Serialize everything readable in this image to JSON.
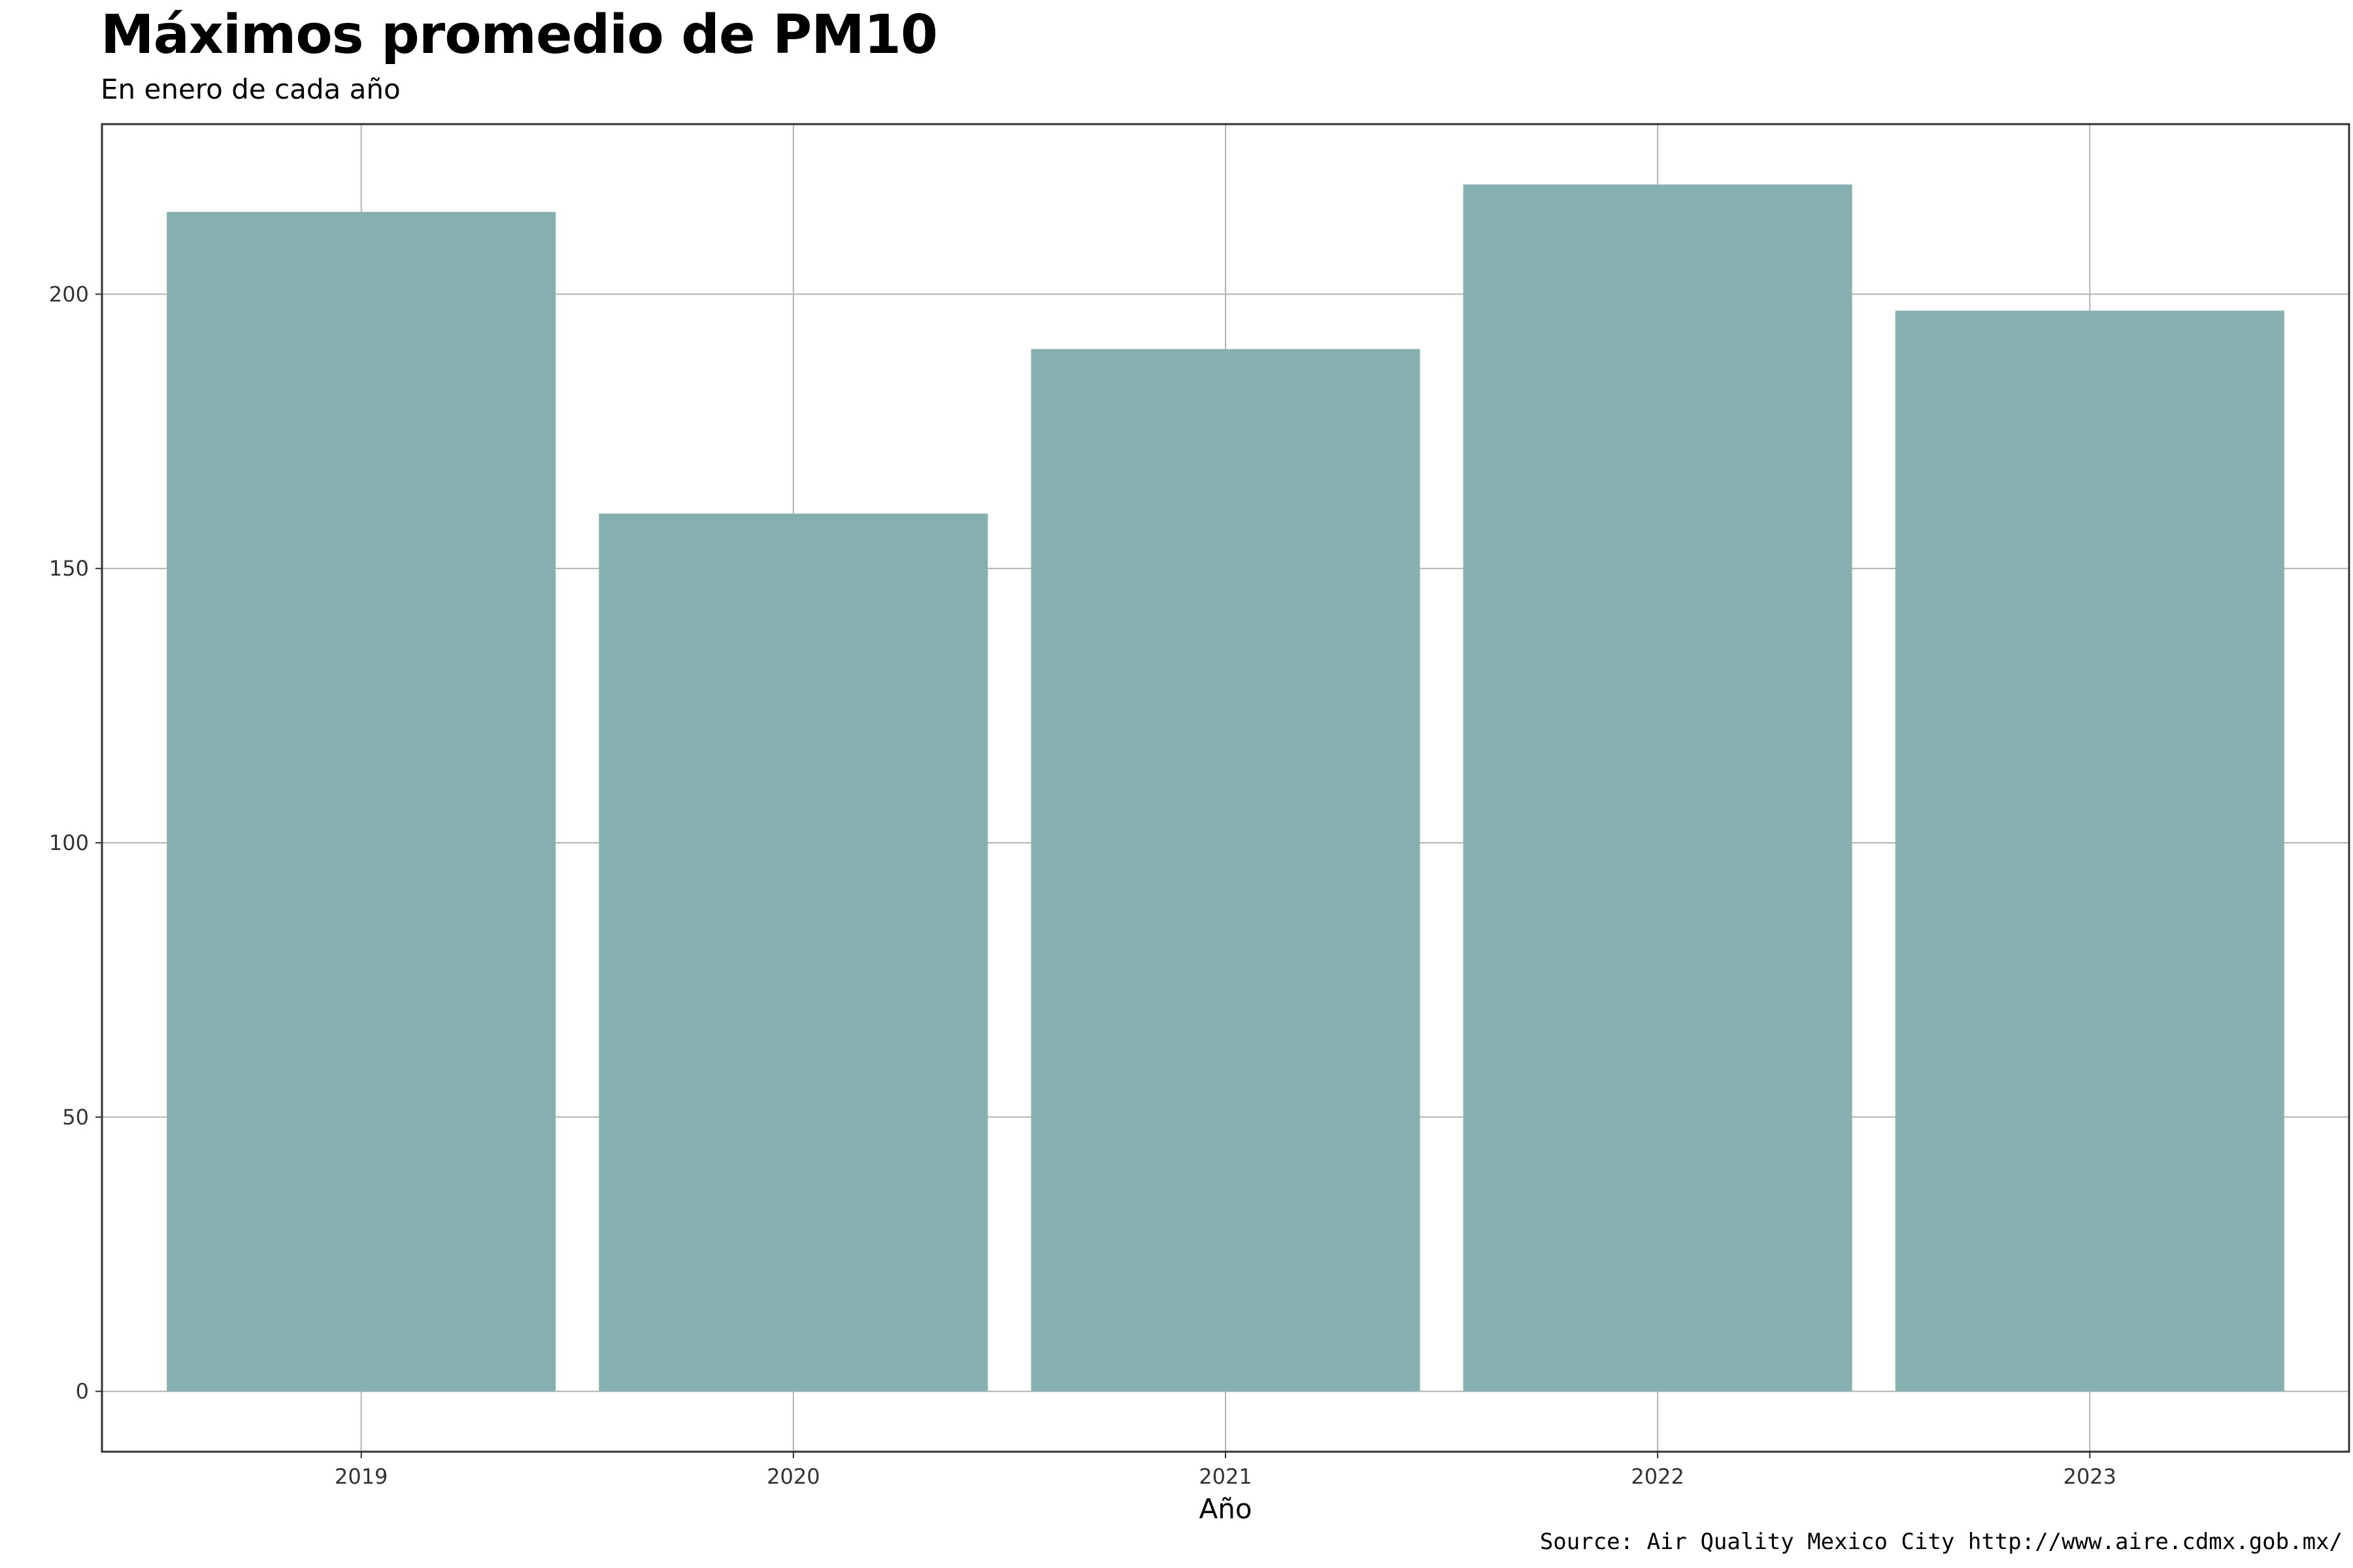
{
  "chart_data": {
    "type": "bar",
    "title": "Máximos promedio de PM10",
    "subtitle": "En enero de cada año",
    "xlabel": "Año",
    "ylabel": "",
    "caption": "Source: Air Quality Mexico City http://www.aire.cdmx.gob.mx/",
    "categories": [
      "2019",
      "2020",
      "2021",
      "2022",
      "2023"
    ],
    "values": [
      215,
      160,
      190,
      220,
      197
    ],
    "ylim": [
      -11,
      231
    ],
    "yticks": [
      0,
      50,
      100,
      150,
      200
    ],
    "grid": true,
    "legend": "none",
    "bar_color": "#86b0b0",
    "grid_color": "#b3b3b3",
    "panel_border_color": "#333333"
  }
}
